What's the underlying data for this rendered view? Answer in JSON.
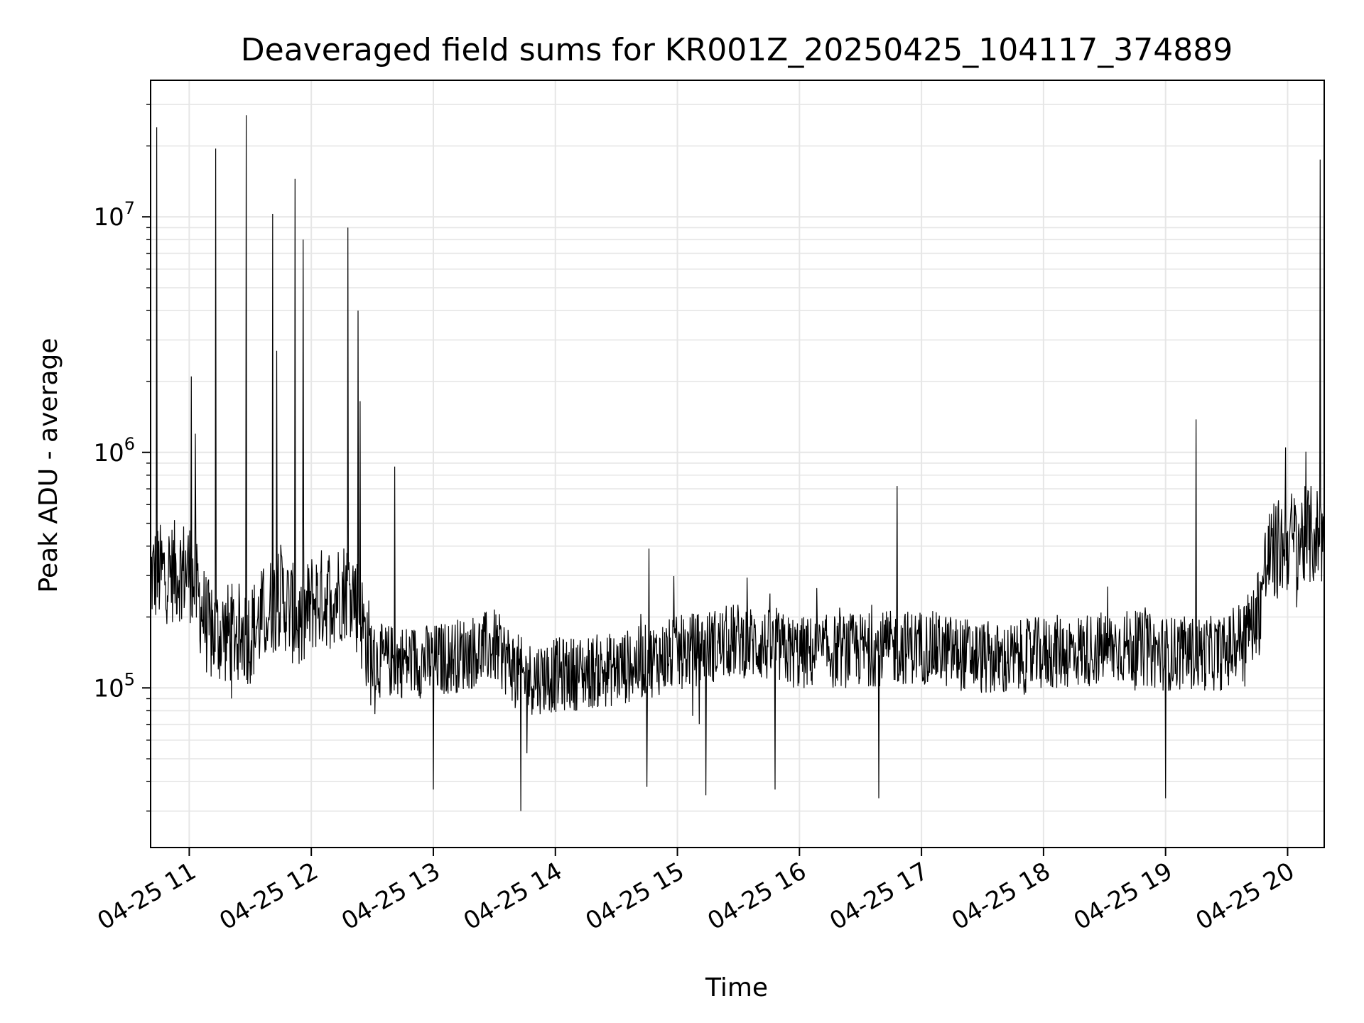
{
  "chart_data": {
    "type": "line",
    "title": "Deaveraged field sums for KR001Z_20250425_104117_374889",
    "xlabel": "Time",
    "ylabel": "Peak ADU - average",
    "yscale": "log",
    "grid": true,
    "line_color": "#000000",
    "grid_color": "#e6e6e6",
    "xlim": [
      "2025-04-25 10:41",
      "2025-04-25 20:18"
    ],
    "ylim": [
      21000,
      38000000
    ],
    "x_ticks": [
      {
        "value": "2025-04-25 11:00",
        "label": "04-25 11"
      },
      {
        "value": "2025-04-25 12:00",
        "label": "04-25 12"
      },
      {
        "value": "2025-04-25 13:00",
        "label": "04-25 13"
      },
      {
        "value": "2025-04-25 14:00",
        "label": "04-25 14"
      },
      {
        "value": "2025-04-25 15:00",
        "label": "04-25 15"
      },
      {
        "value": "2025-04-25 16:00",
        "label": "04-25 16"
      },
      {
        "value": "2025-04-25 17:00",
        "label": "04-25 17"
      },
      {
        "value": "2025-04-25 18:00",
        "label": "04-25 18"
      },
      {
        "value": "2025-04-25 19:00",
        "label": "04-25 19"
      },
      {
        "value": "2025-04-25 20:00",
        "label": "04-25 20"
      }
    ],
    "y_ticks": [
      {
        "value": 100000,
        "base": "10",
        "exp": "5"
      },
      {
        "value": 1000000,
        "base": "10",
        "exp": "6"
      },
      {
        "value": 10000000,
        "base": "10",
        "exp": "7"
      }
    ],
    "series": [
      {
        "baseline": [
          [
            "2025-04-25 10:41",
            300000
          ],
          [
            "2025-04-25 11:00",
            320000
          ],
          [
            "2025-04-25 11:10",
            170000
          ],
          [
            "2025-04-25 11:30",
            170000
          ],
          [
            "2025-04-25 11:45",
            250000
          ],
          [
            "2025-04-25 11:55",
            180000
          ],
          [
            "2025-04-25 12:00",
            230000
          ],
          [
            "2025-04-25 12:20",
            270000
          ],
          [
            "2025-04-25 12:30",
            130000
          ],
          [
            "2025-04-25 13:00",
            130000
          ],
          [
            "2025-04-25 13:30",
            150000
          ],
          [
            "2025-04-25 13:45",
            110000
          ],
          [
            "2025-04-25 14:30",
            120000
          ],
          [
            "2025-04-25 15:00",
            140000
          ],
          [
            "2025-04-25 15:30",
            160000
          ],
          [
            "2025-04-25 16:00",
            140000
          ],
          [
            "2025-04-25 17:00",
            150000
          ],
          [
            "2025-04-25 17:40",
            130000
          ],
          [
            "2025-04-25 18:00",
            140000
          ],
          [
            "2025-04-25 18:40",
            150000
          ],
          [
            "2025-04-25 19:00",
            140000
          ],
          [
            "2025-04-25 19:30",
            140000
          ],
          [
            "2025-04-25 19:45",
            200000
          ],
          [
            "2025-04-25 19:50",
            350000
          ],
          [
            "2025-04-25 20:00",
            420000
          ],
          [
            "2025-04-25 20:18",
            450000
          ]
        ],
        "spikes": [
          [
            "2025-04-25 10:44",
            24000000
          ],
          [
            "2025-04-25 11:01",
            2100000
          ],
          [
            "2025-04-25 11:03",
            1200000
          ],
          [
            "2025-04-25 11:13",
            19500000
          ],
          [
            "2025-04-25 11:28",
            27000000
          ],
          [
            "2025-04-25 11:41",
            10300000
          ],
          [
            "2025-04-25 11:43",
            2700000
          ],
          [
            "2025-04-25 11:52",
            14500000
          ],
          [
            "2025-04-25 11:56",
            8000000
          ],
          [
            "2025-04-25 12:18",
            9000000
          ],
          [
            "2025-04-25 12:23",
            4000000
          ],
          [
            "2025-04-25 12:24",
            1650000
          ],
          [
            "2025-04-25 12:41",
            870000
          ],
          [
            "2025-04-25 14:46",
            390000
          ],
          [
            "2025-04-25 16:48",
            720000
          ],
          [
            "2025-04-25 19:15",
            1380000
          ],
          [
            "2025-04-25 19:59",
            1050000
          ],
          [
            "2025-04-25 20:16",
            17500000
          ]
        ],
        "dips": [
          [
            "2025-04-25 13:00",
            37000
          ],
          [
            "2025-04-25 13:43",
            30000
          ],
          [
            "2025-04-25 14:45",
            38000
          ],
          [
            "2025-04-25 15:14",
            35000
          ],
          [
            "2025-04-25 15:48",
            37000
          ],
          [
            "2025-04-25 16:39",
            34000
          ],
          [
            "2025-04-25 19:00",
            34000
          ]
        ]
      }
    ]
  }
}
